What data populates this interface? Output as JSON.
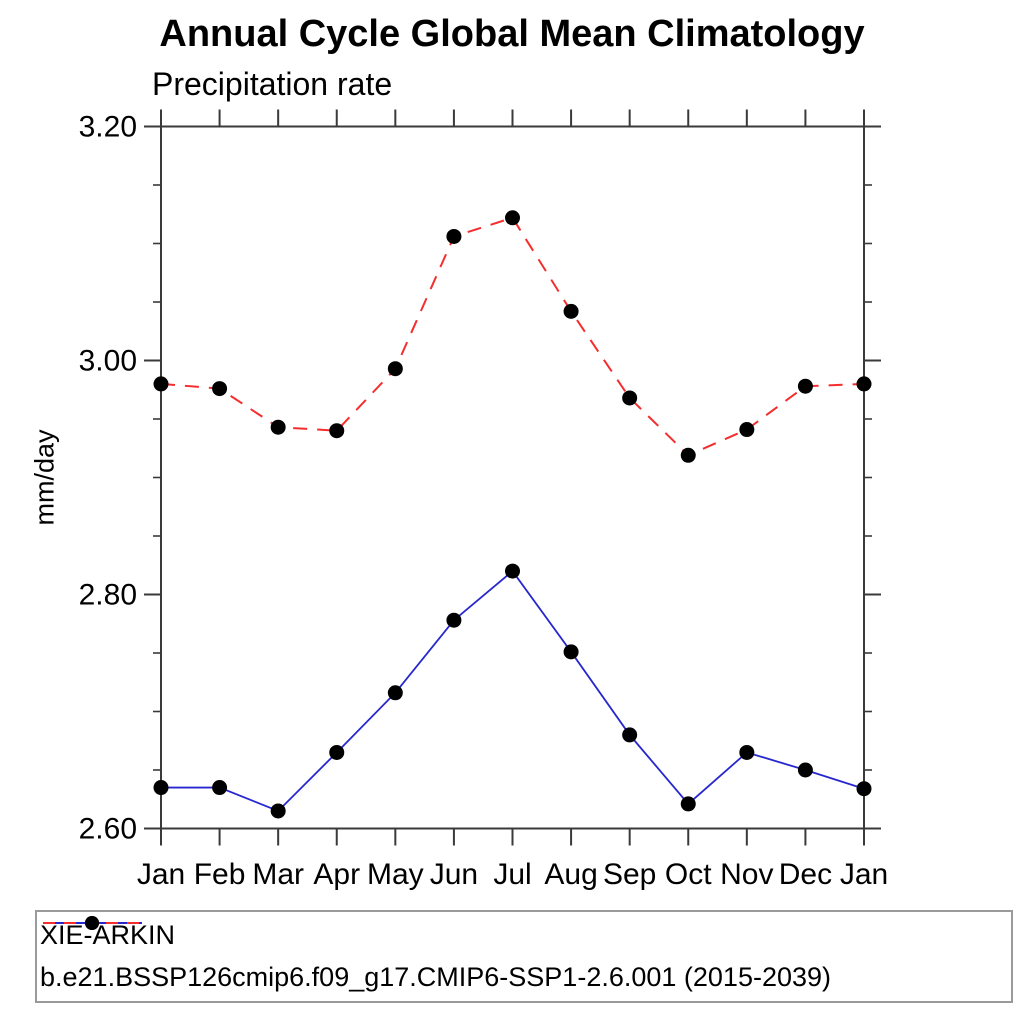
{
  "chart_data": {
    "type": "line",
    "title": "Annual Cycle Global Mean Climatology",
    "subtitle": "Precipitation rate",
    "ylabel": "mm/day",
    "ylim": [
      2.6,
      3.2
    ],
    "ytick_major_interval": 0.2,
    "ytick_minor_interval": 0.05,
    "ytick_labels": [
      "2.60",
      "2.80",
      "3.00",
      "3.20"
    ],
    "grid": "off",
    "legend_position": "bottom",
    "categories": [
      "Jan",
      "Feb",
      "Mar",
      "Apr",
      "May",
      "Jun",
      "Jul",
      "Aug",
      "Sep",
      "Oct",
      "Nov",
      "Dec",
      "Jan"
    ],
    "series": [
      {
        "name": "XIE-ARKIN",
        "line_style": "solid",
        "color": "#2727cf",
        "marker": "filled-circle",
        "marker_color": "#000000",
        "values": [
          2.635,
          2.635,
          2.615,
          2.665,
          2.716,
          2.778,
          2.82,
          2.751,
          2.68,
          2.621,
          2.665,
          2.65,
          2.634
        ]
      },
      {
        "name": "b.e21.BSSP126cmip6.f09_g17.CMIP6-SSP1-2.6.001 (2015-2039)",
        "line_style": "dashed",
        "color": "#f62d2d",
        "marker": "filled-circle",
        "marker_color": "#000000",
        "values": [
          2.98,
          2.976,
          2.943,
          2.94,
          2.993,
          3.106,
          3.122,
          3.042,
          2.968,
          2.919,
          2.941,
          2.978,
          2.98
        ]
      }
    ]
  }
}
